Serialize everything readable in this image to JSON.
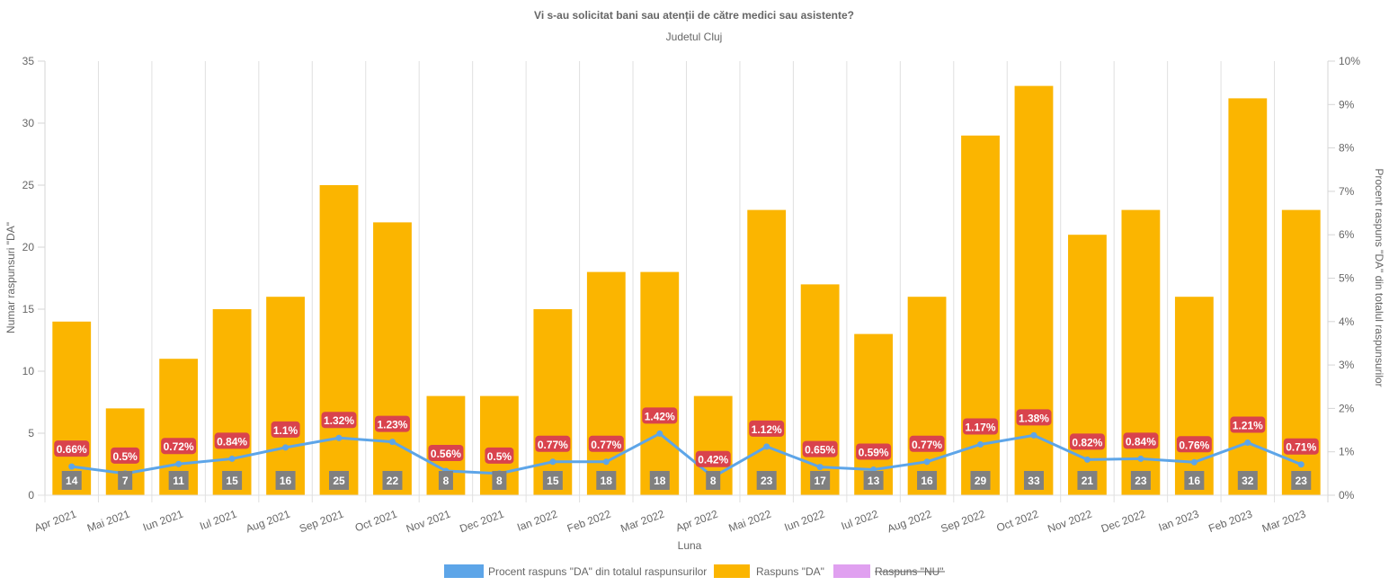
{
  "chart_data": {
    "type": "bar",
    "title": "Vi s-au solicitat bani sau atenții de către medici sau asistente?",
    "subtitle": "Judetul Cluj",
    "xlabel": "Luna",
    "ylabel": "Numar raspunsuri \"DA\"",
    "y2label": "Procent raspuns \"DA\" din totalul raspunsurilor",
    "categories": [
      "Apr 2021",
      "Mai 2021",
      "Iun 2021",
      "Iul 2021",
      "Aug 2021",
      "Sep 2021",
      "Oct 2021",
      "Nov 2021",
      "Dec 2021",
      "Ian 2022",
      "Feb 2022",
      "Mar 2022",
      "Apr 2022",
      "Mai 2022",
      "Iun 2022",
      "Iul 2022",
      "Aug 2022",
      "Sep 2022",
      "Oct 2022",
      "Nov 2022",
      "Dec 2022",
      "Ian 2023",
      "Feb 2023",
      "Mar 2023"
    ],
    "ylim": [
      0,
      35
    ],
    "yticks": [
      0,
      5,
      10,
      15,
      20,
      25,
      30,
      35
    ],
    "y2lim": [
      0,
      10
    ],
    "y2ticks": [
      "0%",
      "1%",
      "2%",
      "3%",
      "4%",
      "5%",
      "6%",
      "7%",
      "8%",
      "9%",
      "10%"
    ],
    "grid": "vertical",
    "legend_position": "bottom",
    "series": [
      {
        "name": "Procent raspuns \"DA\" din totalul raspunsurilor",
        "type": "line",
        "axis": "right",
        "color": "#5DA5E8",
        "values": [
          0.66,
          0.5,
          0.72,
          0.84,
          1.1,
          1.32,
          1.23,
          0.56,
          0.5,
          0.77,
          0.77,
          1.42,
          0.42,
          1.12,
          0.65,
          0.59,
          0.77,
          1.17,
          1.38,
          0.82,
          0.84,
          0.76,
          1.21,
          0.71
        ],
        "labels": [
          "0.66%",
          "0.5%",
          "0.72%",
          "0.84%",
          "1.1%",
          "1.32%",
          "1.23%",
          "0.56%",
          "0.5%",
          "0.77%",
          "0.77%",
          "1.42%",
          "0.42%",
          "1.12%",
          "0.65%",
          "0.59%",
          "0.77%",
          "1.17%",
          "1.38%",
          "0.82%",
          "0.84%",
          "0.76%",
          "1.21%",
          "0.71%"
        ],
        "label_bg": "#D9434D"
      },
      {
        "name": "Raspuns \"DA\"",
        "type": "bar",
        "axis": "left",
        "color": "#FBB500",
        "values": [
          14,
          7,
          11,
          15,
          16,
          25,
          22,
          8,
          8,
          15,
          18,
          18,
          8,
          23,
          17,
          13,
          16,
          29,
          33,
          21,
          23,
          16,
          32,
          23
        ],
        "label_bg": "#808080"
      },
      {
        "name": "Raspuns \"NU\"",
        "type": "bar",
        "axis": "left",
        "color": "#E0A0F0",
        "hidden": true,
        "values": []
      }
    ]
  }
}
